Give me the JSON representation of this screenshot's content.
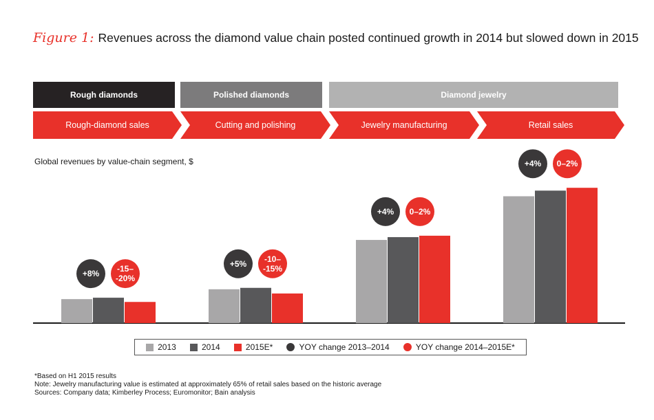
{
  "title": {
    "figure_label": "Figure 1:",
    "text": "Revenues across the diamond value chain posted continued growth in 2014 but slowed down in 2015"
  },
  "stages": [
    {
      "label": "Rough diamonds",
      "color": "#262223"
    },
    {
      "label": "Polished diamonds",
      "color": "#7c7b7c"
    },
    {
      "label": "Diamond jewelry",
      "color": "#b2b2b2"
    }
  ],
  "steps": [
    "Rough-diamond sales",
    "Cutting and polishing",
    "Jewelry manufacturing",
    "Retail sales"
  ],
  "chart_data": {
    "type": "bar",
    "subtitle": "Global revenues by value-chain segment, $",
    "categories": [
      "Rough-diamond sales",
      "Cutting and polishing",
      "Jewelry manufacturing",
      "Retail sales"
    ],
    "series": [
      {
        "name": "2013",
        "color": "#a8a7a8",
        "values": [
          17,
          24,
          59,
          90
        ]
      },
      {
        "name": "2014",
        "color": "#58585a",
        "values": [
          18,
          25,
          61,
          94
        ]
      },
      {
        "name": "2015E*",
        "color": "#e8312a",
        "values": [
          15,
          21,
          62,
          96
        ]
      }
    ],
    "ylim": [
      0,
      100
    ],
    "annotations": [
      {
        "yoy_2013_2014": "+8%",
        "yoy_2014_2015": [
          "-15–",
          "-20%"
        ]
      },
      {
        "yoy_2013_2014": "+5%",
        "yoy_2014_2015": [
          "-10–",
          "-15%"
        ]
      },
      {
        "yoy_2013_2014": "+4%",
        "yoy_2014_2015": [
          "0–2%"
        ]
      },
      {
        "yoy_2013_2014": "+4%",
        "yoy_2014_2015": [
          "0–2%"
        ]
      }
    ],
    "annotation_colors": {
      "yoy_2013_2014": "#3a3839",
      "yoy_2014_2015": "#e8312a"
    }
  },
  "legend": {
    "items": [
      {
        "label": "2013",
        "shape": "square",
        "color": "#a8a7a8"
      },
      {
        "label": "2014",
        "shape": "square",
        "color": "#58585a"
      },
      {
        "label": "2015E*",
        "shape": "square",
        "color": "#e8312a"
      },
      {
        "label": "YOY change 2013–2014",
        "shape": "circle",
        "color": "#3a3839"
      },
      {
        "label": "YOY change 2014–2015E*",
        "shape": "circle",
        "color": "#e8312a"
      }
    ]
  },
  "notes": [
    "*Based on H1 2015 results",
    "Note: Jewelry manufacturing value is estimated at approximately 65% of retail sales based on the historic average",
    "Sources: Company data; Kimberley Process; Euromonitor; Bain analysis"
  ]
}
